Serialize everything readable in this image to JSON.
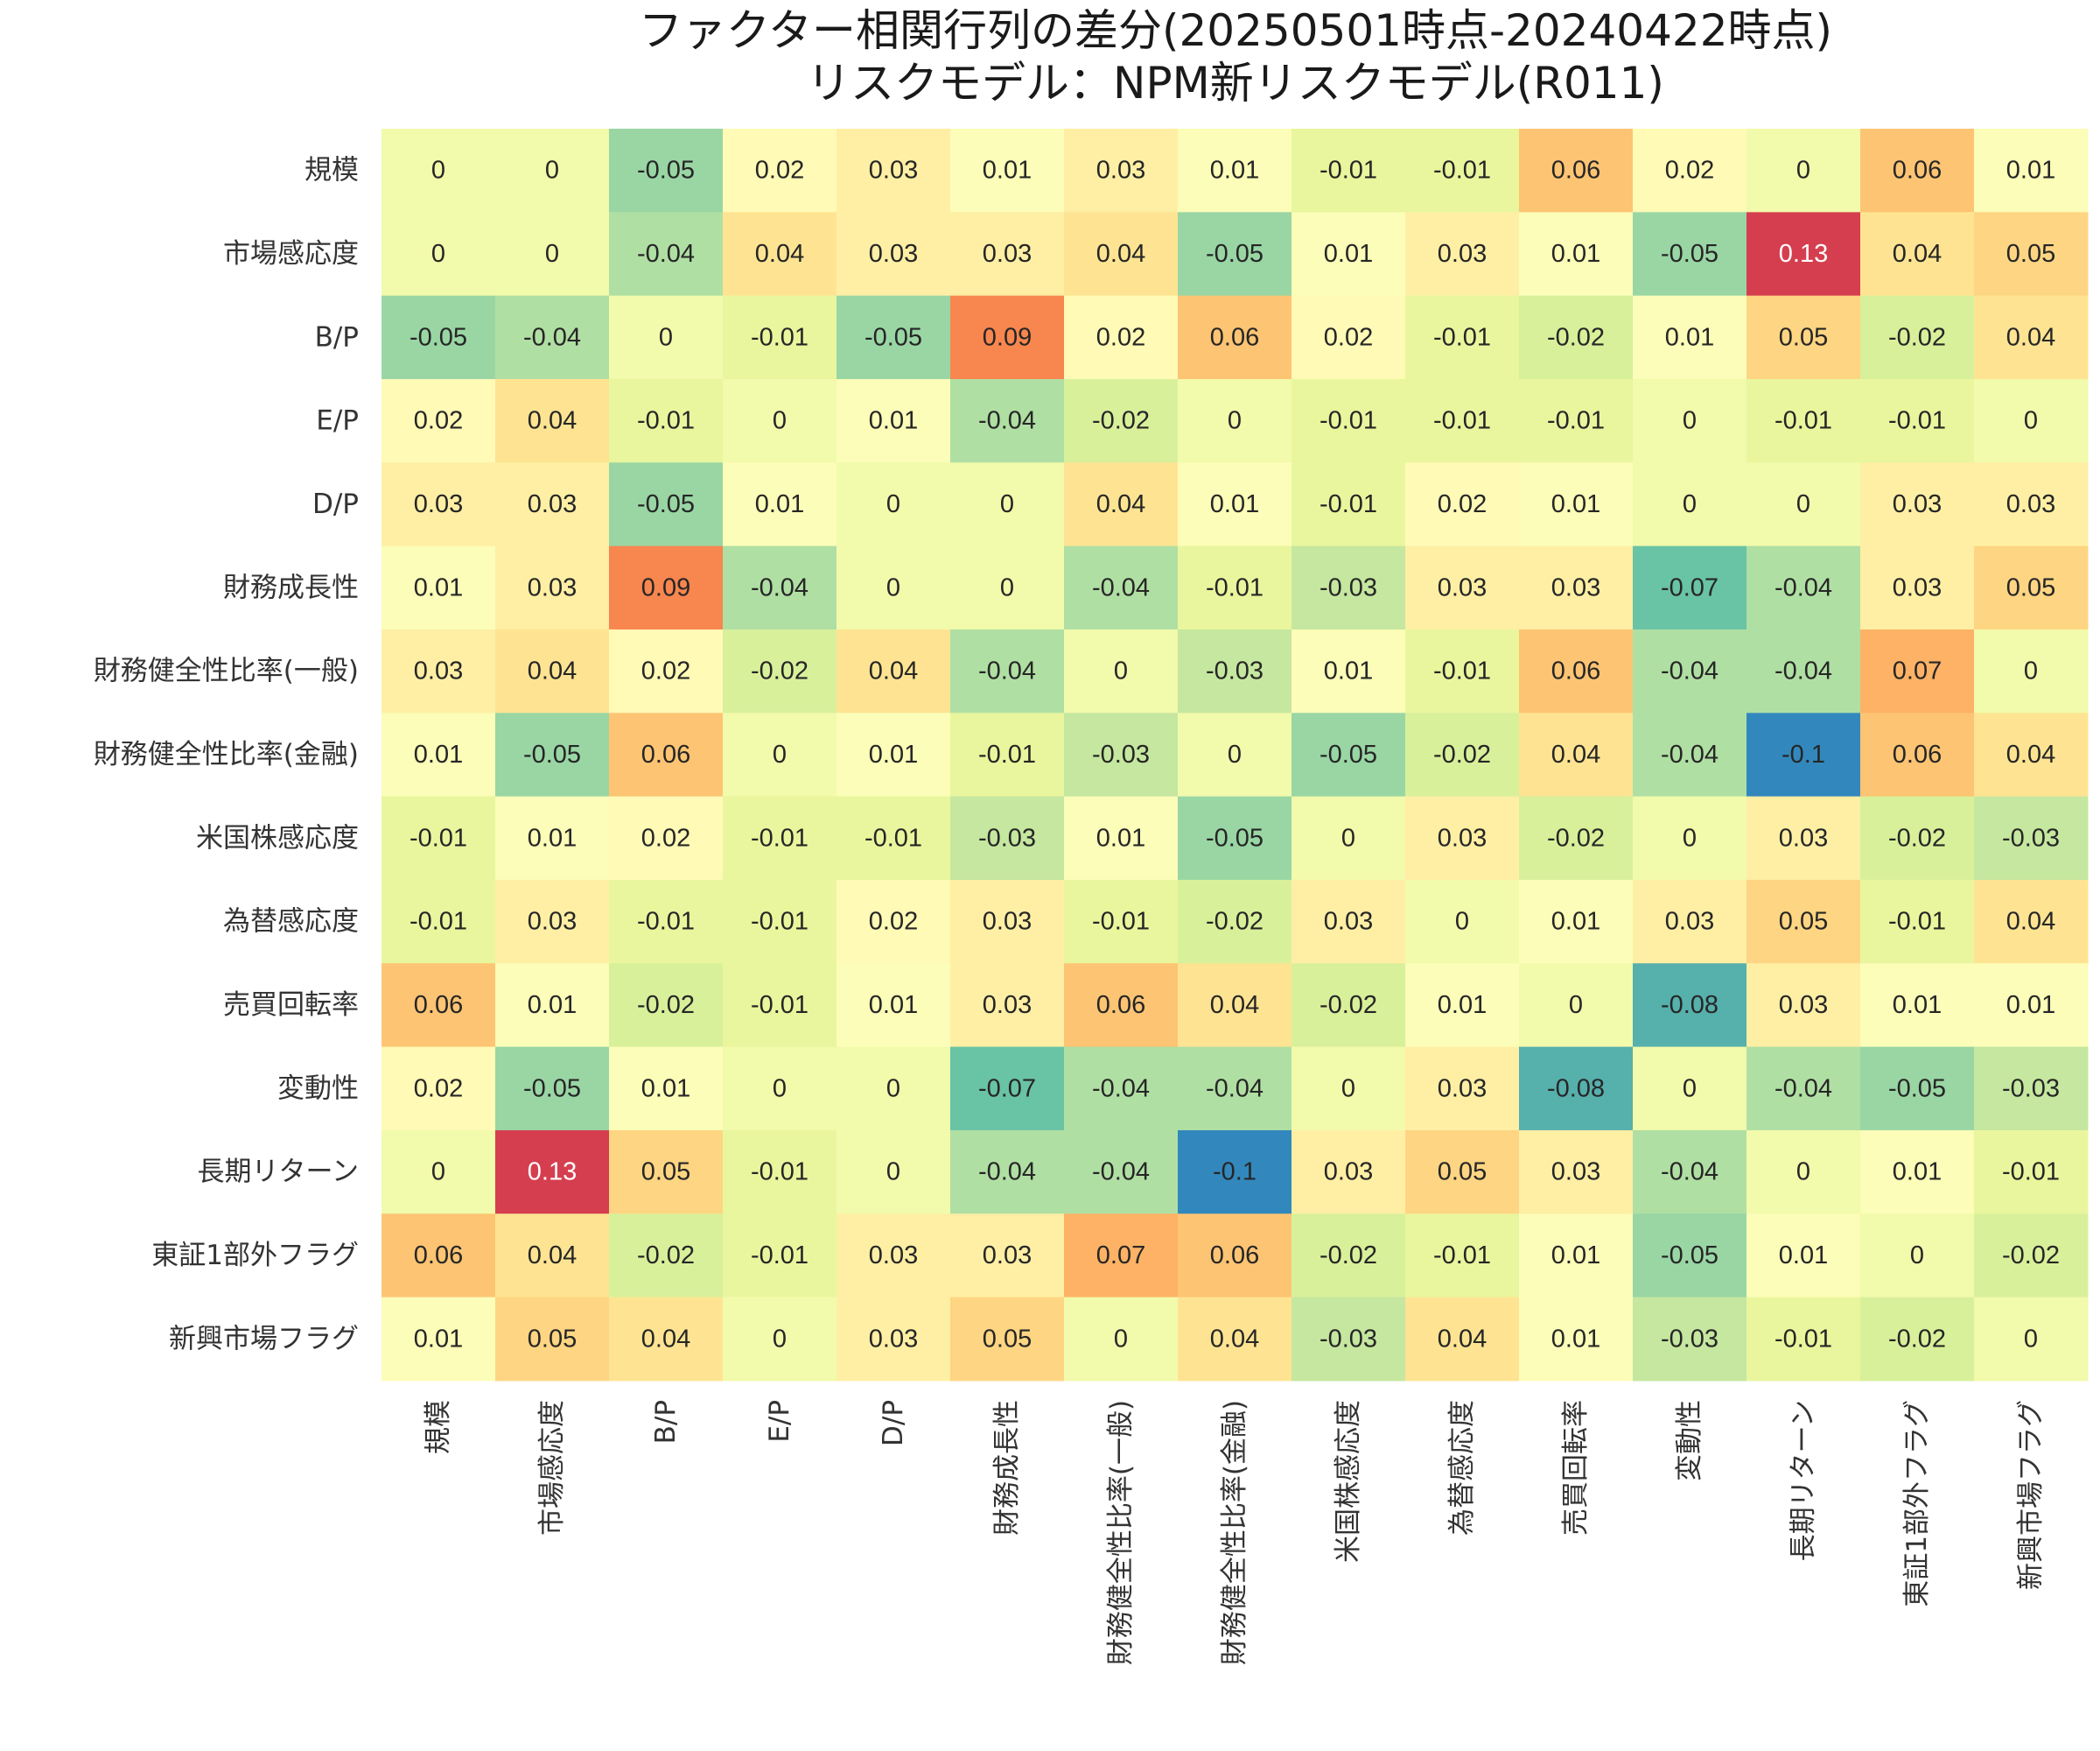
{
  "chart_data": {
    "type": "heatmap",
    "title": "ファクター相関行列の差分(20250501時点-20240422時点)",
    "subtitle": "リスクモデル：NPM新リスクモデル(R011)",
    "xlabel": "",
    "ylabel": "",
    "grid": false,
    "legend": "none",
    "colormap": "Spectral_r",
    "vmin": -0.1,
    "vmax": 0.13,
    "row_labels": [
      "規模",
      "市場感応度",
      "B/P",
      "E/P",
      "D/P",
      "財務成長性",
      "財務健全性比率(一般)",
      "財務健全性比率(金融)",
      "米国株感応度",
      "為替感応度",
      "売買回転率",
      "変動性",
      "長期リターン",
      "東証1部外フラグ",
      "新興市場フラグ"
    ],
    "col_labels": [
      "規模",
      "市場感応度",
      "B/P",
      "E/P",
      "D/P",
      "財務成長性",
      "財務健全性比率(一般)",
      "財務健全性比率(金融)",
      "米国株感応度",
      "為替感応度",
      "売買回転率",
      "変動性",
      "長期リターン",
      "東証1部外フラグ",
      "新興市場フラグ"
    ],
    "values": [
      [
        0,
        0,
        -0.05,
        0.02,
        0.03,
        0.01,
        0.03,
        0.01,
        -0.01,
        -0.01,
        0.06,
        0.02,
        0,
        0.06,
        0.01
      ],
      [
        0,
        0,
        -0.04,
        0.04,
        0.03,
        0.03,
        0.04,
        -0.05,
        0.01,
        0.03,
        0.01,
        -0.05,
        0.13,
        0.04,
        0.05
      ],
      [
        -0.05,
        -0.04,
        0,
        -0.01,
        -0.05,
        0.09,
        0.02,
        0.06,
        0.02,
        -0.01,
        -0.02,
        0.01,
        0.05,
        -0.02,
        0.04
      ],
      [
        0.02,
        0.04,
        -0.01,
        0,
        0.01,
        -0.04,
        -0.02,
        0,
        -0.01,
        -0.01,
        -0.01,
        0,
        -0.01,
        -0.01,
        0
      ],
      [
        0.03,
        0.03,
        -0.05,
        0.01,
        0,
        0,
        0.04,
        0.01,
        -0.01,
        0.02,
        0.01,
        0,
        0,
        0.03,
        0.03
      ],
      [
        0.01,
        0.03,
        0.09,
        -0.04,
        0,
        0,
        -0.04,
        -0.01,
        -0.03,
        0.03,
        0.03,
        -0.07,
        -0.04,
        0.03,
        0.05
      ],
      [
        0.03,
        0.04,
        0.02,
        -0.02,
        0.04,
        -0.04,
        0,
        -0.03,
        0.01,
        -0.01,
        0.06,
        -0.04,
        -0.04,
        0.07,
        0
      ],
      [
        0.01,
        -0.05,
        0.06,
        0,
        0.01,
        -0.01,
        -0.03,
        0,
        -0.05,
        -0.02,
        0.04,
        -0.04,
        -0.1,
        0.06,
        0.04
      ],
      [
        -0.01,
        0.01,
        0.02,
        -0.01,
        -0.01,
        -0.03,
        0.01,
        -0.05,
        0,
        0.03,
        -0.02,
        0,
        0.03,
        -0.02,
        -0.03
      ],
      [
        -0.01,
        0.03,
        -0.01,
        -0.01,
        0.02,
        0.03,
        -0.01,
        -0.02,
        0.03,
        0,
        0.01,
        0.03,
        0.05,
        -0.01,
        0.04
      ],
      [
        0.06,
        0.01,
        -0.02,
        -0.01,
        0.01,
        0.03,
        0.06,
        0.04,
        -0.02,
        0.01,
        0,
        -0.08,
        0.03,
        0.01,
        0.01
      ],
      [
        0.02,
        -0.05,
        0.01,
        0,
        0,
        -0.07,
        -0.04,
        -0.04,
        0,
        0.03,
        -0.08,
        0,
        -0.04,
        -0.05,
        -0.03
      ],
      [
        0,
        0.13,
        0.05,
        -0.01,
        0,
        -0.04,
        -0.04,
        -0.1,
        0.03,
        0.05,
        0.03,
        -0.04,
        0,
        0.01,
        -0.01
      ],
      [
        0.06,
        0.04,
        -0.02,
        -0.01,
        0.03,
        0.03,
        0.07,
        0.06,
        -0.02,
        -0.01,
        0.01,
        -0.05,
        0.01,
        0,
        -0.02
      ],
      [
        0.01,
        0.05,
        0.04,
        0,
        0.03,
        0.05,
        0,
        0.04,
        -0.03,
        0.04,
        0.01,
        -0.03,
        -0.01,
        -0.02,
        0
      ]
    ]
  }
}
